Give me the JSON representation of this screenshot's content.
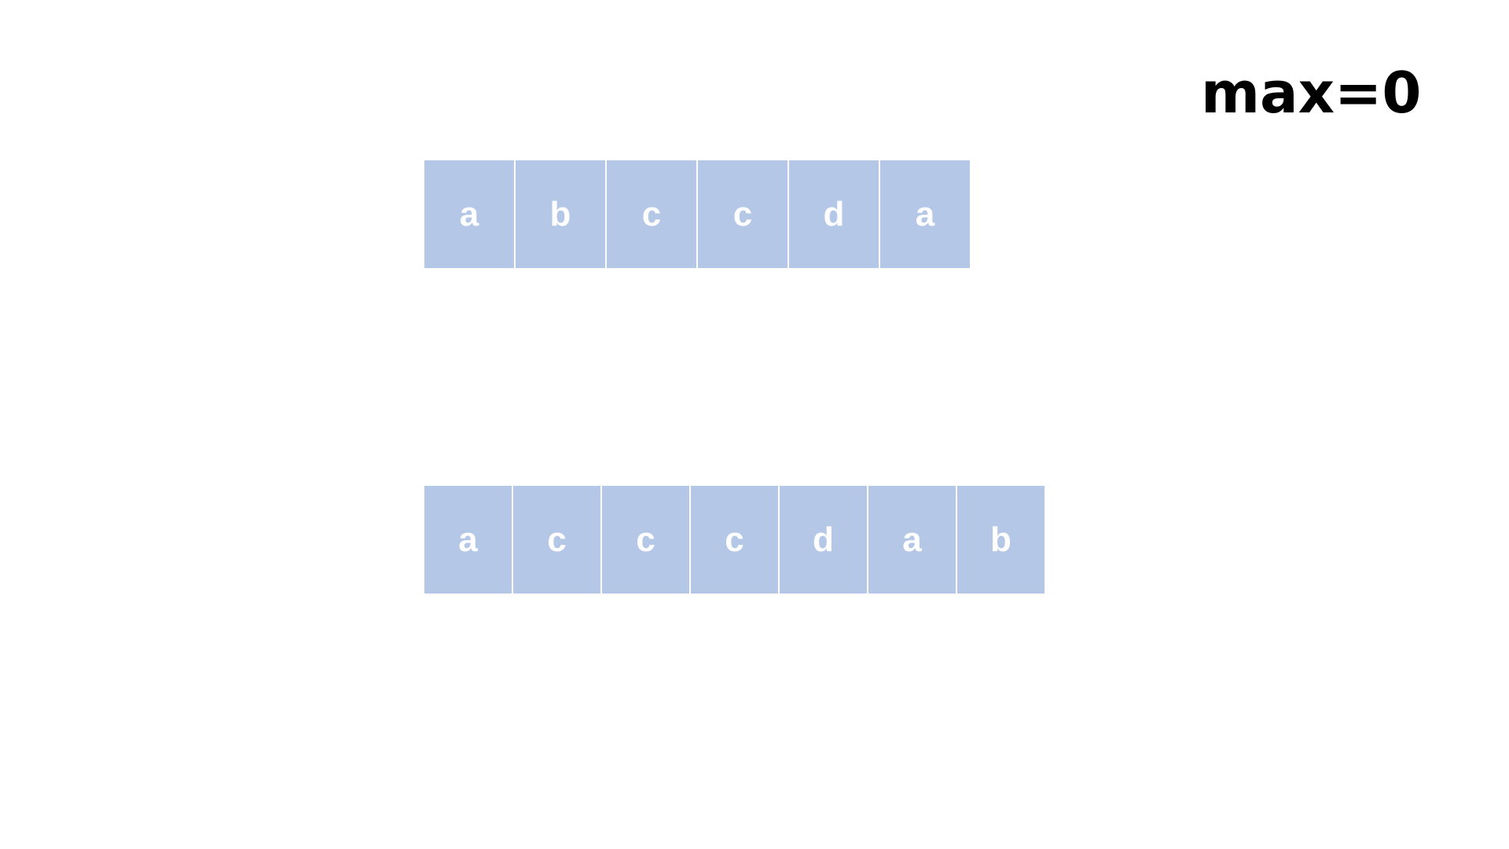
{
  "counter": {
    "label": "max=0"
  },
  "rows": [
    {
      "cells": [
        "a",
        "b",
        "c",
        "c",
        "d",
        "a"
      ]
    },
    {
      "cells": [
        "a",
        "c",
        "c",
        "c",
        "d",
        "a",
        "b"
      ]
    }
  ],
  "colors": {
    "cell_fill": "#b4c7e7",
    "cell_text": "#ffffff",
    "label_text": "#000000",
    "background": "#ffffff"
  }
}
